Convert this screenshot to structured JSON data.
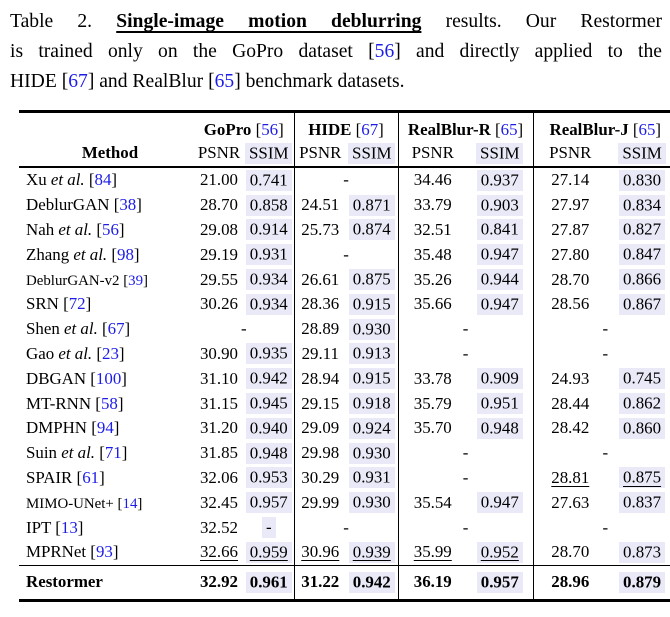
{
  "colors": {
    "citation_blue": "#1c1ce8",
    "ssim_highlight": "#eae9f7",
    "rule_black": "#000000"
  },
  "caption": {
    "lines": [
      [
        {
          "t": "Table 2. "
        },
        {
          "t": "Single-image motion deblurring",
          "bold": true
        },
        {
          "t": " results. Our Restormer"
        }
      ],
      [
        {
          "t": "is trained only on the GoPro dataset ["
        },
        {
          "t": "56",
          "cite": true
        },
        {
          "t": "] and directly applied to the"
        }
      ],
      [
        {
          "t": "HIDE ["
        },
        {
          "t": "67",
          "cite": true
        },
        {
          "t": "] and RealBlur ["
        },
        {
          "t": "65",
          "cite": true
        },
        {
          "t": "] benchmark datasets."
        }
      ]
    ]
  },
  "table": {
    "method_header": "Method",
    "subheaders": [
      "PSNR",
      "SSIM"
    ],
    "missing_marker": "-",
    "groups": [
      {
        "name": "GoPro",
        "cite": "56"
      },
      {
        "name": "HIDE",
        "cite": "67"
      },
      {
        "name": "RealBlur-R",
        "cite": "65"
      },
      {
        "name": "RealBlur-J",
        "cite": "65"
      }
    ],
    "rows": [
      {
        "method": {
          "name": "Xu",
          "etal": true,
          "cite": "84"
        },
        "cells": [
          {
            "p": "21.00",
            "s": "0.741"
          },
          {
            "dash": true
          },
          {
            "p": "34.46",
            "s": "0.937"
          },
          {
            "p": "27.14",
            "s": "0.830"
          }
        ]
      },
      {
        "method": {
          "name": "DeblurGAN",
          "cite": "38"
        },
        "cells": [
          {
            "p": "28.70",
            "s": "0.858"
          },
          {
            "p": "24.51",
            "s": "0.871"
          },
          {
            "p": "33.79",
            "s": "0.903"
          },
          {
            "p": "27.97",
            "s": "0.834"
          }
        ]
      },
      {
        "method": {
          "name": "Nah",
          "etal": true,
          "cite": "56"
        },
        "cells": [
          {
            "p": "29.08",
            "s": "0.914"
          },
          {
            "p": "25.73",
            "s": "0.874"
          },
          {
            "p": "32.51",
            "s": "0.841"
          },
          {
            "p": "27.87",
            "s": "0.827"
          }
        ]
      },
      {
        "method": {
          "name": "Zhang",
          "etal": true,
          "cite": "98"
        },
        "cells": [
          {
            "p": "29.19",
            "s": "0.931"
          },
          {
            "dash": true
          },
          {
            "p": "35.48",
            "s": "0.947"
          },
          {
            "p": "27.80",
            "s": "0.847"
          }
        ]
      },
      {
        "method": {
          "name": "DeblurGAN-v2",
          "cite": "39",
          "small": true
        },
        "cells": [
          {
            "p": "29.55",
            "s": "0.934"
          },
          {
            "p": "26.61",
            "s": "0.875"
          },
          {
            "p": "35.26",
            "s": "0.944"
          },
          {
            "p": "28.70",
            "s": "0.866"
          }
        ]
      },
      {
        "method": {
          "name": "SRN",
          "cite": "72"
        },
        "cells": [
          {
            "p": "30.26",
            "s": "0.934"
          },
          {
            "p": "28.36",
            "s": "0.915"
          },
          {
            "p": "35.66",
            "s": "0.947"
          },
          {
            "p": "28.56",
            "s": "0.867"
          }
        ]
      },
      {
        "method": {
          "name": "Shen",
          "etal": true,
          "cite": "67"
        },
        "cells": [
          {
            "dash": true
          },
          {
            "p": "28.89",
            "s": "0.930"
          },
          {
            "dash": true
          },
          {
            "dash": true
          }
        ]
      },
      {
        "method": {
          "name": "Gao",
          "etal": true,
          "cite": "23"
        },
        "cells": [
          {
            "p": "30.90",
            "s": "0.935"
          },
          {
            "p": "29.11",
            "s": "0.913"
          },
          {
            "dash": true
          },
          {
            "dash": true
          }
        ]
      },
      {
        "method": {
          "name": "DBGAN",
          "cite": "100"
        },
        "cells": [
          {
            "p": "31.10",
            "s": "0.942"
          },
          {
            "p": "28.94",
            "s": "0.915"
          },
          {
            "p": "33.78",
            "s": "0.909"
          },
          {
            "p": "24.93",
            "s": "0.745"
          }
        ]
      },
      {
        "method": {
          "name": "MT-RNN",
          "cite": "58"
        },
        "cells": [
          {
            "p": "31.15",
            "s": "0.945"
          },
          {
            "p": "29.15",
            "s": "0.918"
          },
          {
            "p": "35.79",
            "s": "0.951"
          },
          {
            "p": "28.44",
            "s": "0.862"
          }
        ]
      },
      {
        "method": {
          "name": "DMPHN",
          "cite": "94"
        },
        "cells": [
          {
            "p": "31.20",
            "s": "0.940"
          },
          {
            "p": "29.09",
            "s": "0.924"
          },
          {
            "p": "35.70",
            "s": "0.948"
          },
          {
            "p": "28.42",
            "s": "0.860"
          }
        ]
      },
      {
        "method": {
          "name": "Suin",
          "etal": true,
          "cite": "71"
        },
        "cells": [
          {
            "p": "31.85",
            "s": "0.948"
          },
          {
            "p": "29.98",
            "s": "0.930"
          },
          {
            "dash": true
          },
          {
            "dash": true
          }
        ]
      },
      {
        "method": {
          "name": "SPAIR",
          "cite": "61"
        },
        "cells": [
          {
            "p": "32.06",
            "s": "0.953"
          },
          {
            "p": "30.29",
            "s": "0.931"
          },
          {
            "dash": true
          },
          {
            "p": "28.81",
            "s": "0.875",
            "u": true
          }
        ]
      },
      {
        "method": {
          "name": "MIMO-UNet+",
          "cite": "14",
          "small": true
        },
        "cells": [
          {
            "p": "32.45",
            "s": "0.957"
          },
          {
            "p": "29.99",
            "s": "0.930"
          },
          {
            "p": "35.54",
            "s": "0.947"
          },
          {
            "p": "27.63",
            "s": "0.837"
          }
        ]
      },
      {
        "method": {
          "name": "IPT",
          "cite": "13"
        },
        "cells": [
          {
            "p": "32.52",
            "s": "-"
          },
          {
            "dash": true
          },
          {
            "dash": true
          },
          {
            "dash": true
          }
        ]
      },
      {
        "method": {
          "name": "MPRNet",
          "cite": "93"
        },
        "cells": [
          {
            "p": "32.66",
            "s": "0.959",
            "u": true
          },
          {
            "p": "30.96",
            "s": "0.939",
            "u": true
          },
          {
            "p": "35.99",
            "s": "0.952",
            "u": true
          },
          {
            "p": "28.70",
            "s": "0.873"
          }
        ]
      }
    ],
    "final_row": {
      "method": {
        "name": "Restormer"
      },
      "cells": [
        {
          "p": "32.92",
          "s": "0.961"
        },
        {
          "p": "31.22",
          "s": "0.942"
        },
        {
          "p": "36.19",
          "s": "0.957"
        },
        {
          "p": "28.96",
          "s": "0.879"
        }
      ]
    }
  }
}
